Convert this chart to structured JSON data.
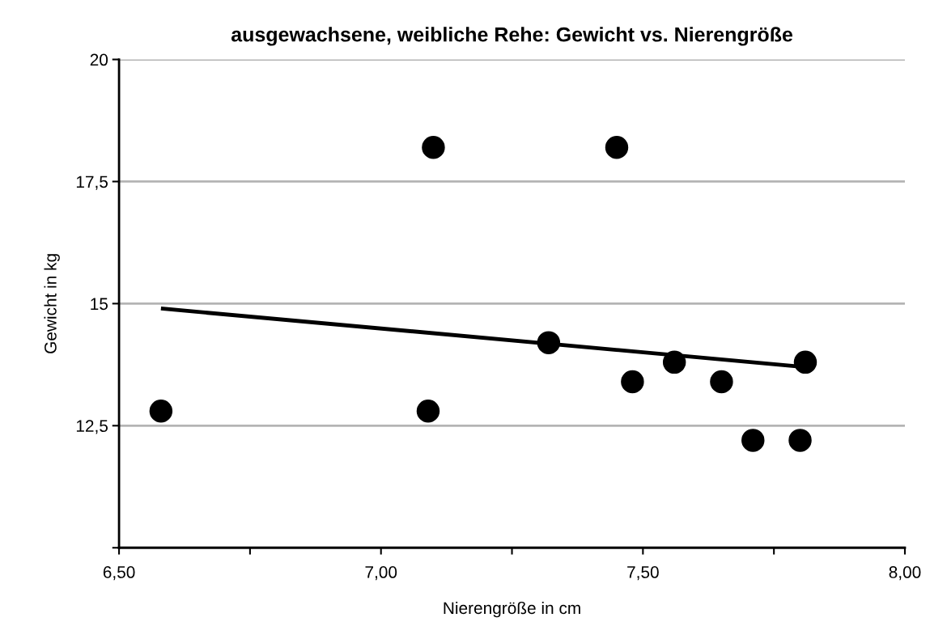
{
  "chart_data": {
    "type": "scatter",
    "title": "ausgewachsene, weibliche Rehe: Gewicht vs. Nierengröße",
    "xlabel": "Nierengröße in cm",
    "ylabel": "Gewicht in kg",
    "series": [
      {
        "color": "#000000",
        "x": [
          6.58,
          7.09,
          7.1,
          7.45,
          7.32,
          7.48,
          7.56,
          7.65,
          7.71,
          7.8,
          7.81
        ],
        "values": [
          12.8,
          12.8,
          18.2,
          18.2,
          14.2,
          13.4,
          13.8,
          13.4,
          12.2,
          12.2,
          13.8
        ],
        "marker": "circle"
      },
      {
        "type": "line",
        "color": "#000000",
        "x": [
          6.58,
          7.81
        ],
        "values": [
          14.9,
          13.7
        ],
        "marker": "none",
        "line_style": "solid"
      }
    ],
    "xlim": [
      6.5,
      8.0
    ],
    "xticks": [
      {
        "value": 6.5,
        "label": "6,50"
      },
      {
        "value": 6.75,
        "label": null
      },
      {
        "value": 7.0,
        "label": "7,00"
      },
      {
        "value": 7.25,
        "label": null
      },
      {
        "value": 7.5,
        "label": "7,50"
      },
      {
        "value": 7.75,
        "label": null
      },
      {
        "value": 8.0,
        "label": "8,00"
      }
    ],
    "ylim": [
      10,
      20
    ],
    "yticks": [
      {
        "value": 10,
        "label": null
      },
      {
        "value": 12.5,
        "label": "12,5"
      },
      {
        "value": 15,
        "label": "15"
      },
      {
        "value": 17.5,
        "label": "17,5"
      },
      {
        "value": 20,
        "label": "20"
      }
    ],
    "grid": "y"
  }
}
